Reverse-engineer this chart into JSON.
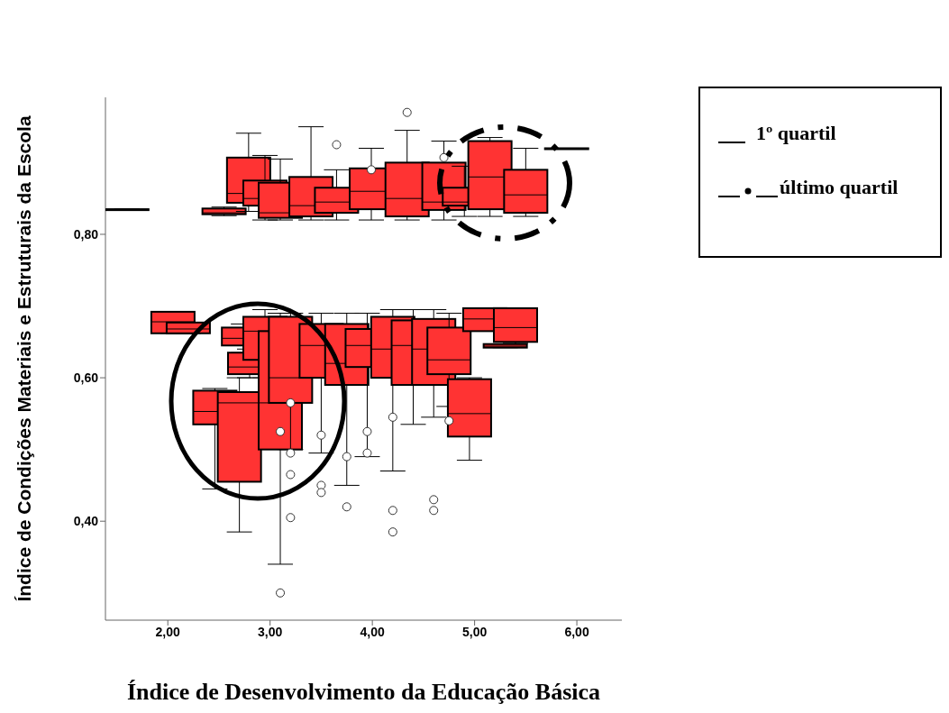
{
  "chart_data": {
    "type": "box",
    "xlabel": "Índice de Desenvolvimento da Educação Básica",
    "ylabel": "Índice de Condições Materiais e Estruturais da Escola",
    "x": [
      1.6,
      2.55,
      2.79,
      2.95,
      3.1,
      3.4,
      3.65,
      3.99,
      4.34,
      4.7,
      4.9,
      5.15,
      5.5,
      5.9,
      2.05,
      2.2,
      2.46,
      2.7,
      2.8,
      2.74,
      2.95,
      3.1,
      3.2,
      3.5,
      3.75,
      3.95,
      4.2,
      4.4,
      4.6,
      4.75,
      4.95,
      5.1,
      5.3,
      5.4
    ],
    "color": "#ff3333",
    "boxes": [
      {
        "low": 0.835,
        "q1": 0.835,
        "median": 0.835,
        "q3": 0.835,
        "high": 0.835
      },
      {
        "low": 0.826,
        "q1": 0.828,
        "median": 0.83,
        "q3": 0.836,
        "high": 0.838
      },
      {
        "low": 0.832,
        "q1": 0.844,
        "median": 0.857,
        "q3": 0.907,
        "high": 0.941
      },
      {
        "low": 0.82,
        "q1": 0.84,
        "median": 0.85,
        "q3": 0.875,
        "high": 0.91
      },
      {
        "low": 0.82,
        "q1": 0.823,
        "median": 0.83,
        "q3": 0.872,
        "high": 0.905
      },
      {
        "low": 0.82,
        "q1": 0.825,
        "median": 0.84,
        "q3": 0.88,
        "high": 0.95
      },
      {
        "low": 0.82,
        "q1": 0.83,
        "median": 0.845,
        "q3": 0.865,
        "high": 0.89,
        "outliers": [
          0.925
        ]
      },
      {
        "low": 0.82,
        "q1": 0.835,
        "median": 0.86,
        "q3": 0.892,
        "high": 0.92,
        "outliers": [
          0.89
        ]
      },
      {
        "low": 0.82,
        "q1": 0.825,
        "median": 0.85,
        "q3": 0.9,
        "high": 0.945,
        "outliers": [
          0.97
        ]
      },
      {
        "low": 0.82,
        "q1": 0.834,
        "median": 0.845,
        "q3": 0.9,
        "high": 0.93,
        "outliers": [
          0.907
        ]
      },
      {
        "low": 0.825,
        "q1": 0.84,
        "median": 0.845,
        "q3": 0.865,
        "high": 0.895
      },
      {
        "low": 0.825,
        "q1": 0.835,
        "median": 0.88,
        "q3": 0.93,
        "high": 0.935
      },
      {
        "low": 0.825,
        "q1": 0.83,
        "median": 0.855,
        "q3": 0.89,
        "high": 0.92
      },
      {
        "low": 0.92,
        "q1": 0.92,
        "median": 0.92,
        "q3": 0.92,
        "high": 0.92
      },
      {
        "low": 0.662,
        "q1": 0.662,
        "median": 0.678,
        "q3": 0.692,
        "high": 0.692
      },
      {
        "low": 0.662,
        "q1": 0.662,
        "median": 0.668,
        "q3": 0.677,
        "high": 0.677
      },
      {
        "low": 0.445,
        "q1": 0.535,
        "median": 0.553,
        "q3": 0.582,
        "high": 0.585
      },
      {
        "low": 0.385,
        "q1": 0.455,
        "median": 0.565,
        "q3": 0.58,
        "high": 0.6
      },
      {
        "low": 0.6,
        "q1": 0.605,
        "median": 0.615,
        "q3": 0.635,
        "high": 0.64
      },
      {
        "low": 0.635,
        "q1": 0.645,
        "median": 0.655,
        "q3": 0.67,
        "high": 0.675
      },
      {
        "low": 0.6,
        "q1": 0.625,
        "median": 0.665,
        "q3": 0.685,
        "high": 0.695
      },
      {
        "low": 0.34,
        "q1": 0.5,
        "median": 0.565,
        "q3": 0.665,
        "high": 0.69,
        "outliers": [
          0.3,
          0.525
        ]
      },
      {
        "low": 0.5,
        "q1": 0.565,
        "median": 0.6,
        "q3": 0.685,
        "high": 0.69,
        "outliers": [
          0.495,
          0.405,
          0.465,
          0.565
        ]
      },
      {
        "low": 0.495,
        "q1": 0.6,
        "median": 0.645,
        "q3": 0.675,
        "high": 0.69,
        "outliers": [
          0.45,
          0.44,
          0.52
        ]
      },
      {
        "low": 0.45,
        "q1": 0.59,
        "median": 0.62,
        "q3": 0.675,
        "high": 0.69,
        "outliers": [
          0.49,
          0.42
        ]
      },
      {
        "low": 0.49,
        "q1": 0.615,
        "median": 0.645,
        "q3": 0.668,
        "high": 0.69,
        "outliers": [
          0.525,
          0.495
        ]
      },
      {
        "low": 0.47,
        "q1": 0.6,
        "median": 0.64,
        "q3": 0.685,
        "high": 0.695,
        "outliers": [
          0.415,
          0.385,
          0.545
        ]
      },
      {
        "low": 0.535,
        "q1": 0.59,
        "median": 0.645,
        "q3": 0.68,
        "high": 0.695
      },
      {
        "low": 0.545,
        "q1": 0.59,
        "median": 0.64,
        "q3": 0.682,
        "high": 0.695,
        "outliers": [
          0.43,
          0.415
        ]
      },
      {
        "low": 0.56,
        "q1": 0.605,
        "median": 0.625,
        "q3": 0.67,
        "high": 0.69,
        "outliers": [
          0.54
        ]
      },
      {
        "low": 0.485,
        "q1": 0.518,
        "median": 0.55,
        "q3": 0.598,
        "high": 0.6
      },
      {
        "low": 0.665,
        "q1": 0.665,
        "median": 0.682,
        "q3": 0.697,
        "high": 0.697
      },
      {
        "low": 0.642,
        "q1": 0.642,
        "median": 0.644,
        "q3": 0.647,
        "high": 0.647
      },
      {
        "low": 0.648,
        "q1": 0.65,
        "median": 0.67,
        "q3": 0.697,
        "high": 0.697
      }
    ],
    "xlim": [
      1.39,
      6.44
    ],
    "ylim": [
      0.262,
      0.991
    ],
    "xticks": [
      {
        "value": 2,
        "label": "2,00"
      },
      {
        "value": 3,
        "label": "3,00"
      },
      {
        "value": 4,
        "label": "4,00"
      },
      {
        "value": 5,
        "label": "5,00"
      },
      {
        "value": 6,
        "label": "6,00"
      }
    ],
    "yticks": [
      {
        "value": 0.4,
        "label": "0,40"
      },
      {
        "value": 0.6,
        "label": "0,60"
      },
      {
        "value": 0.8,
        "label": "0,80"
      }
    ],
    "annotations": [
      "1º quartil",
      "último quartil"
    ]
  }
}
